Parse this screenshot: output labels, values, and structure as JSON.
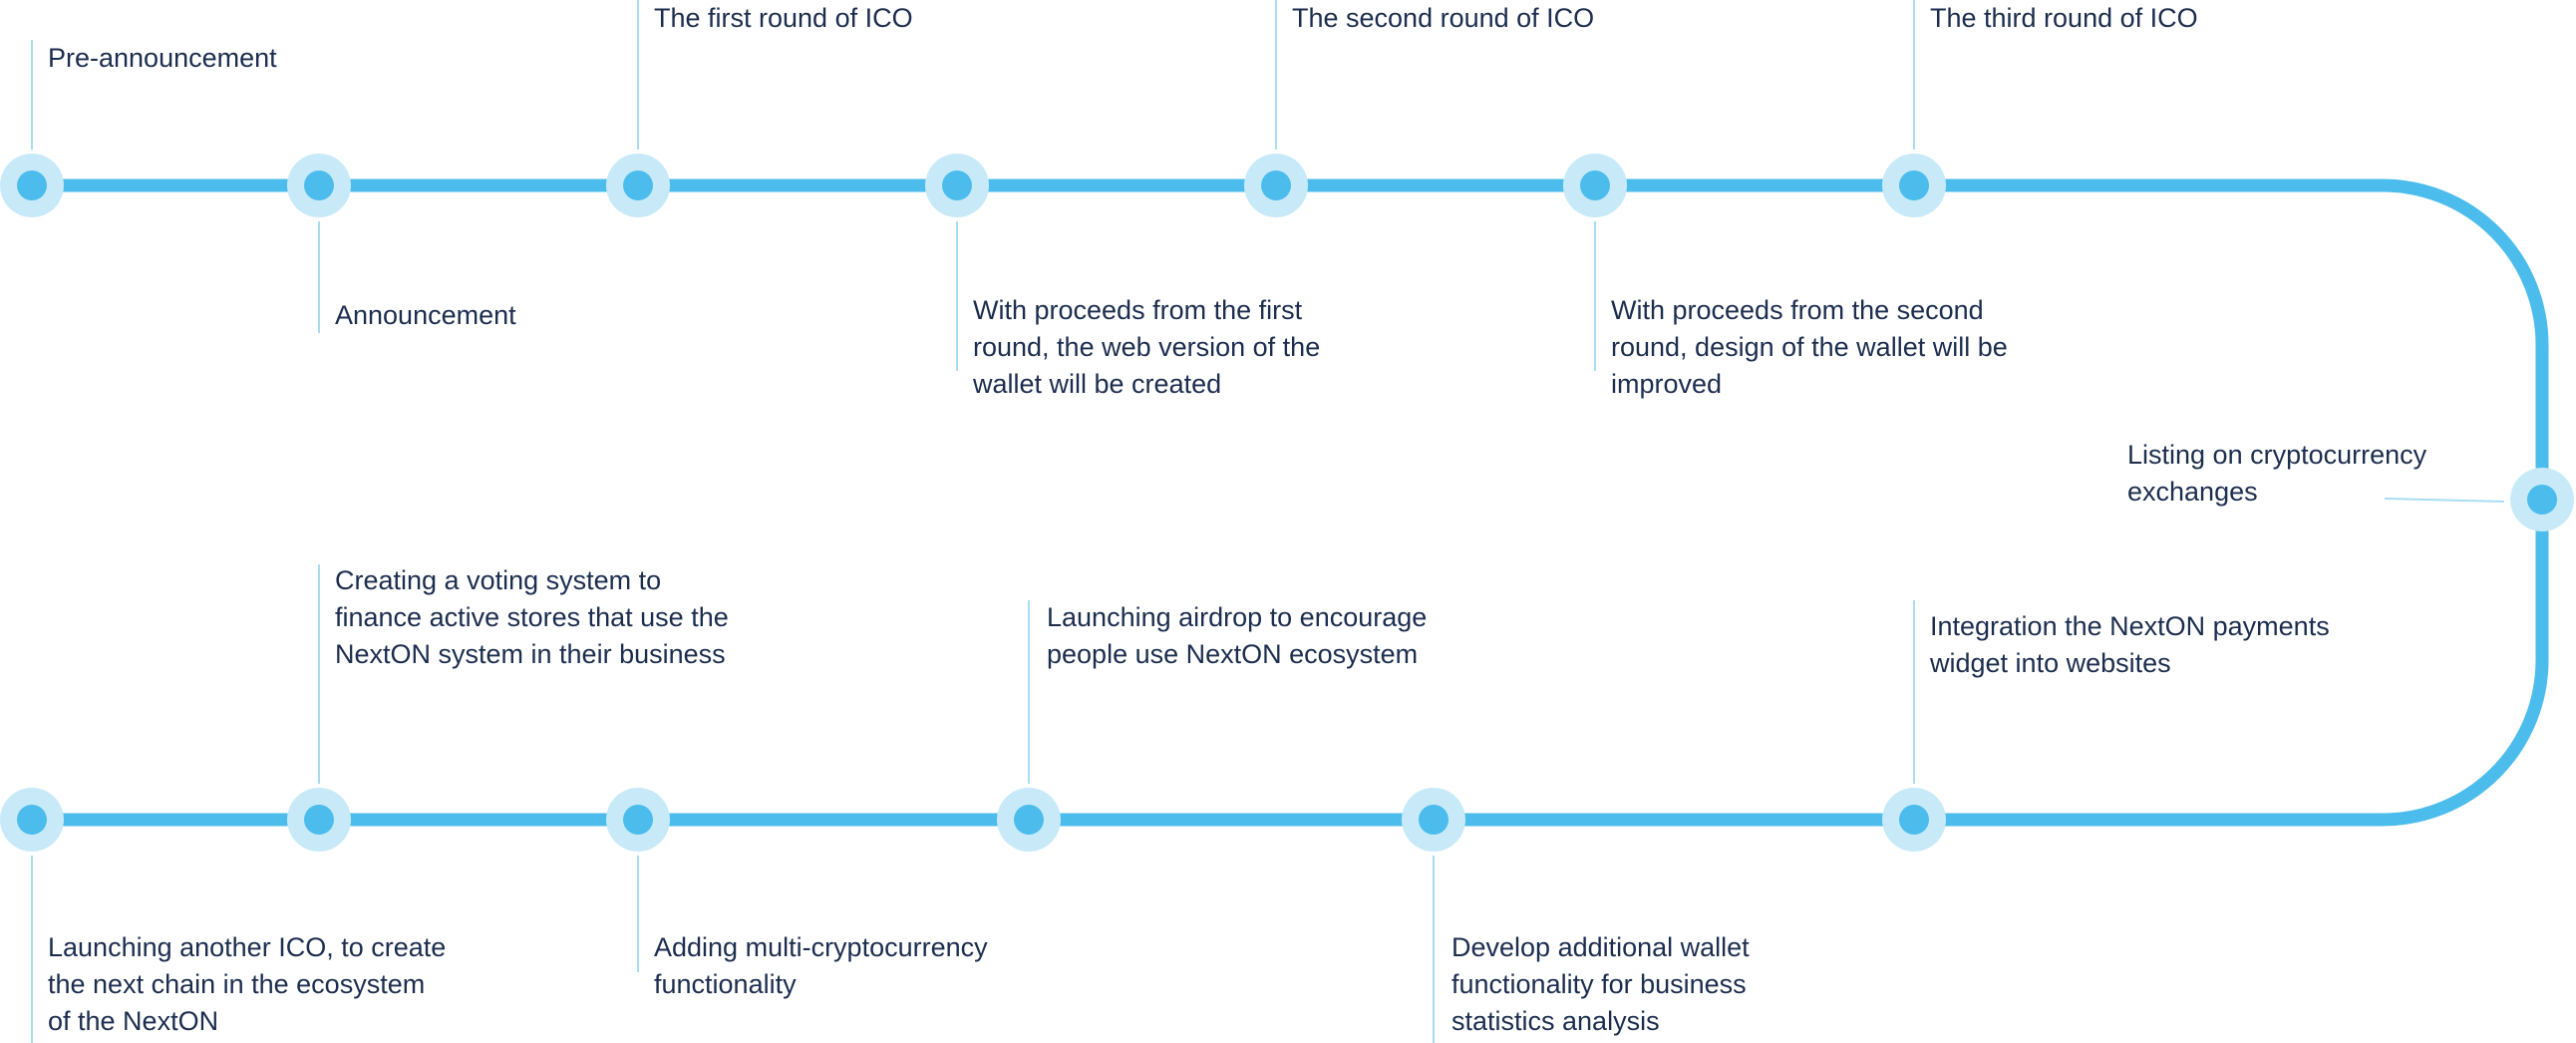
{
  "colors": {
    "track": "#4bbcec",
    "node": "#4bbcec",
    "halo": "#c8eaf8",
    "connector": "#a9dcf3",
    "text": "#1c2d4e"
  },
  "top_row": {
    "pre_announcement": "Pre-announcement",
    "announcement": "Announcement",
    "first_round_ico": "The first round of ICO",
    "first_round_proceeds": [
      "With proceeds from the first",
      "round, the web version of the",
      "wallet will be created"
    ],
    "second_round_ico": "The second round of ICO",
    "second_round_proceeds": [
      "With proceeds from the second",
      "round, design of the wallet will be",
      "improved"
    ],
    "third_round_ico": "The third round of ICO"
  },
  "turn": {
    "listing": [
      "Listing on cryptocurrency",
      "exchanges"
    ]
  },
  "bottom_row": {
    "another_ico": [
      "Launching another ICO, to create",
      "the next chain in the ecosystem",
      "of the NextON"
    ],
    "voting_system": [
      "Creating a voting system to",
      "finance active stores that use the",
      "NextON system in their business"
    ],
    "multi_crypto": [
      "Adding multi-cryptocurrency",
      "functionality"
    ],
    "airdrop": [
      "Launching airdrop to encourage",
      "people use NextON ecosystem"
    ],
    "wallet_functionality": [
      "Develop additional wallet",
      "functionality for business",
      "statistics analysis"
    ],
    "payments_widget": [
      "Integration the NextON payments",
      "widget into websites"
    ]
  }
}
